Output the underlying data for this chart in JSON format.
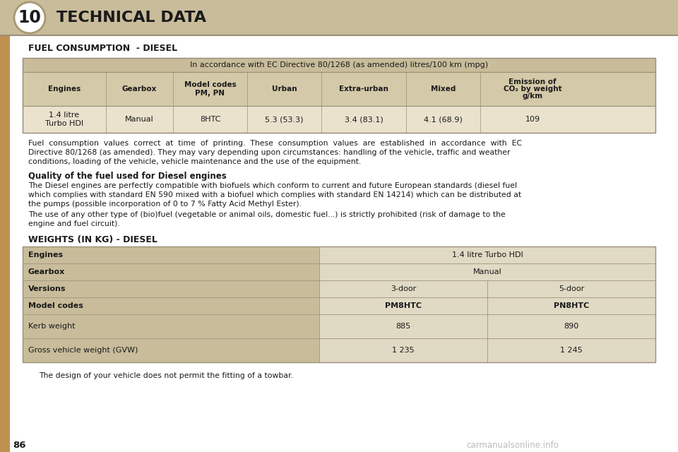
{
  "page_num": "10",
  "title": "TECHNICAL DATA",
  "section1_title": "FUEL CONSUMPTION  - DIESEL",
  "table1_header_text": "In accordance with EC Directive 80/1268 (as amended) litres/100 km (mpg)",
  "table1_col_headers": [
    "Engines",
    "Gearbox",
    "Model codes\nPM, PN",
    "Urban",
    "Extra-urban",
    "Mixed",
    "Emission of\nCO₂ by weight\ng/km"
  ],
  "table1_data": [
    [
      "1.4 litre\nTurbo HDI",
      "Manual",
      "8HTC",
      "5.3 (53.3)",
      "3.4 (83.1)",
      "4.1 (68.9)",
      "109"
    ]
  ],
  "para1_lines": [
    "Fuel  consumption  values  correct  at  time  of  printing.  These  consumption  values  are  established  in  accordance  with  EC",
    "Directive 80/1268 (as amended). They may vary depending upon circumstances: handling of the vehicle, traffic and weather",
    "conditions, loading of the vehicle, vehicle maintenance and the use of the equipment."
  ],
  "section2_title": "Quality of the fuel used for Diesel engines",
  "para2_lines": [
    "The Diesel engines are perfectly compatible with biofuels which conform to current and future European standards (diesel fuel",
    "which complies with standard EN 590 mixed with a biofuel which complies with standard EN 14214) which can be distributed at",
    "the pumps (possible incorporation of 0 to 7 % Fatty Acid Methyl Ester)."
  ],
  "para3_lines": [
    "The use of any other type of (bio)fuel (vegetable or animal oils, domestic fuel...) is strictly prohibited (risk of damage to the",
    "engine and fuel circuit)."
  ],
  "section3_title": "WEIGHTS (IN KG) - DIESEL",
  "table2_rows": [
    {
      "label": "Engines",
      "values": [
        "1.4 litre Turbo HDI"
      ],
      "span": 2,
      "bold_label": true,
      "bold_value": false
    },
    {
      "label": "Gearbox",
      "values": [
        "Manual"
      ],
      "span": 2,
      "bold_label": true,
      "bold_value": false
    },
    {
      "label": "Versions",
      "values": [
        "3-door",
        "5-door"
      ],
      "span": 1,
      "bold_label": true,
      "bold_value": false
    },
    {
      "label": "Model codes",
      "values": [
        "PM8HTC",
        "PN8HTC"
      ],
      "span": 1,
      "bold_label": true,
      "bold_value": true
    },
    {
      "label": "Kerb weight",
      "values": [
        "885",
        "890"
      ],
      "span": 1,
      "bold_label": false,
      "bold_value": false
    },
    {
      "label": "Gross vehicle weight (GVW)",
      "values": [
        "1 235",
        "1 245"
      ],
      "span": 1,
      "bold_label": false,
      "bold_value": false
    }
  ],
  "footer_note": "The design of your vehicle does not permit the fitting of a towbar.",
  "page_label": "86",
  "watermark": "carmanualsonline.info",
  "bg_color": "#FFFFFF",
  "header_bg": "#C9BC9B",
  "table_header_bg": "#C9BC9B",
  "table_col_hdr_bg": "#D4C9A8",
  "table_data_bg": "#EAE2CD",
  "table2_label_bg": "#C9BC9B",
  "table2_value_bg": "#E0D9C4",
  "sidebar_color": "#C09050",
  "border_color": "#9B8F78",
  "text_color": "#1A1A1A",
  "watermark_color": "#BBBBBB"
}
